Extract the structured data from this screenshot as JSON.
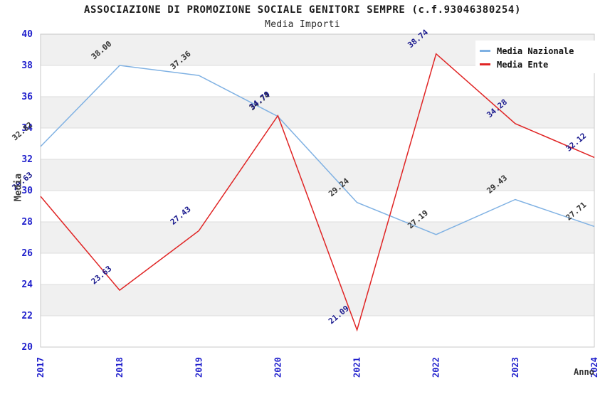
{
  "header": {
    "title": "ASSOCIAZIONE DI PROMOZIONE SOCIALE GENITORI SEMPRE (c.f.93046380254)",
    "subtitle": "Media Importi"
  },
  "chart_data": {
    "type": "line",
    "title": "ASSOCIAZIONE DI PROMOZIONE SOCIALE GENITORI SEMPRE (c.f.93046380254)",
    "subtitle": "Media Importi",
    "x": [
      "2017",
      "2018",
      "2019",
      "2020",
      "2021",
      "2022",
      "2023",
      "2024"
    ],
    "xlabel": "Anno",
    "ylabel": "Media",
    "ylim": [
      20,
      40
    ],
    "ytick_step": 2,
    "yticks": [
      20,
      22,
      24,
      26,
      28,
      30,
      32,
      34,
      36,
      38,
      40
    ],
    "grid": "horizontal-gridlines-with-alternating-bands",
    "legend_position": "top-right-inside",
    "series": [
      {
        "name": "Media Nazionale",
        "color": "#7fb1e3",
        "label_color": "#333333",
        "values": [
          32.82,
          38.0,
          37.36,
          34.74,
          29.24,
          27.19,
          29.43,
          27.71
        ]
      },
      {
        "name": "Media Ente",
        "color": "#e02424",
        "label_color": "#1b1b8f",
        "values": [
          29.63,
          23.63,
          27.43,
          34.79,
          21.09,
          38.74,
          34.28,
          32.12
        ]
      }
    ],
    "colors": {
      "tick_label": "#2020cc",
      "band_gray": "#f0f0f0",
      "band_white": "#ffffff",
      "gridline": "#dcdcdc",
      "plot_border": "#c8c8c8",
      "axis_title": "#3c3c3c"
    }
  }
}
